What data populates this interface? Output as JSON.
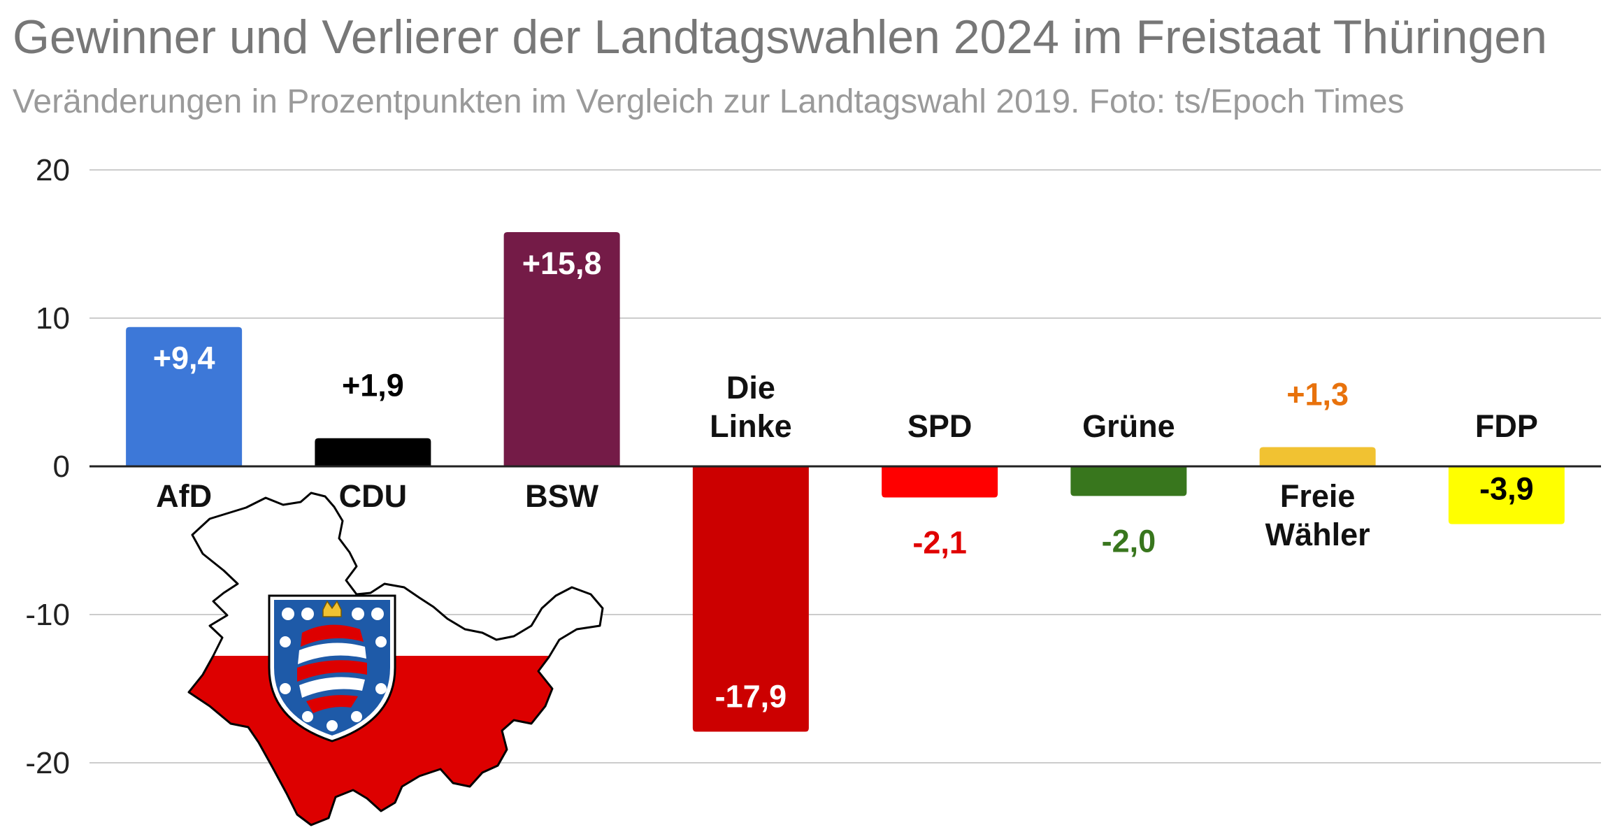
{
  "chart_data": {
    "type": "bar",
    "title": "Gewinner und Verlierer der Landtagswahlen 2024 im Freistaat Thüringen",
    "subtitle": "Veränderungen in Prozentpunkten im Vergleich zur Landtagswahl 2019. Foto: ts/Epoch Times",
    "xlabel": "",
    "ylabel": "",
    "ylim": [
      -25,
      20
    ],
    "yticks": [
      "20",
      "10",
      "0",
      "-10",
      "-20"
    ],
    "ytick_values": [
      20,
      10,
      0,
      -10,
      -20
    ],
    "grid": true,
    "legend": "none",
    "categories": [
      [
        "AfD"
      ],
      [
        "CDU"
      ],
      [
        "BSW"
      ],
      [
        "Die",
        "Linke"
      ],
      [
        "SPD"
      ],
      [
        "Grüne"
      ],
      [
        "Freie",
        "Wähler"
      ],
      [
        "FDP"
      ]
    ],
    "values": [
      9.4,
      1.9,
      15.8,
      -17.9,
      -2.1,
      -2.0,
      1.3,
      -3.9
    ],
    "data_labels": [
      "+9,4",
      "+1,9",
      "+15,8",
      "-17,9",
      "-2,1",
      "-2,0",
      "+1,3",
      "-3,9"
    ],
    "colors": [
      "#3d78d8",
      "#000000",
      "#741b47",
      "#cc0000",
      "#ff0000",
      "#38761d",
      "#f1c232",
      "#ffff00"
    ],
    "label_colors": [
      "#ffffff",
      "#000000",
      "#ffffff",
      "#ffffff",
      "#e00000",
      "#38761d",
      "#e8720c",
      "#000000"
    ]
  },
  "decoration": {
    "map": "thuringia-state-map",
    "flag_colors": [
      "#ffffff",
      "#dd0000"
    ],
    "coat_of_arms": "thuringia-coat-of-arms"
  }
}
